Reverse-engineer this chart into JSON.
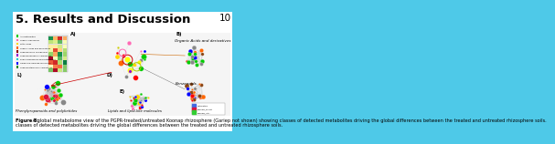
{
  "title": "5. Results and Discussion",
  "slide_number": "10",
  "bg_color": "#4ec9e8",
  "title_color": "#000000",
  "title_fontsize": 9.5,
  "slide_num_fontsize": 7.5,
  "figure_caption_bold": "Figure 8:",
  "figure_caption_rest": " A global metabolome view of the PGPR-treated/untreated Koonap rhizosphere (Gariep not shown) showing classes of detected metabolites driving the global differences between the treated and untreated rhizosphere soils.",
  "caption_fontsize": 3.6,
  "label_A": "Organic Acids and derivatives",
  "label_B": "Benzenoids",
  "label_C": "Phenylpropanoids and polyketides",
  "label_D": "Lipids and lipid-like molecules",
  "legend_colors": [
    "#00cc00",
    "#ff69b4",
    "#ffd700",
    "#ff6600",
    "#8b0000",
    "#9400d3",
    "#00ced1",
    "#0000ff",
    "#228b22"
  ],
  "legend_labels": [
    "All metabolites",
    "Organic flavonoids",
    "Fatty acids",
    "Organic acids and derivatives",
    "Organosulfuric compounds",
    "Organophosphonic compounds",
    "Phenylpropanoids and metabolites",
    "Lipids and lipid-like molecules",
    "Organoheterocyclic compounds"
  ],
  "small_legend": [
    [
      "#4169e1",
      "Untreated"
    ],
    [
      "#dc143c",
      "Koonap_B-left"
    ],
    [
      "#32cd32",
      "Koonap_Ctrl"
    ]
  ]
}
